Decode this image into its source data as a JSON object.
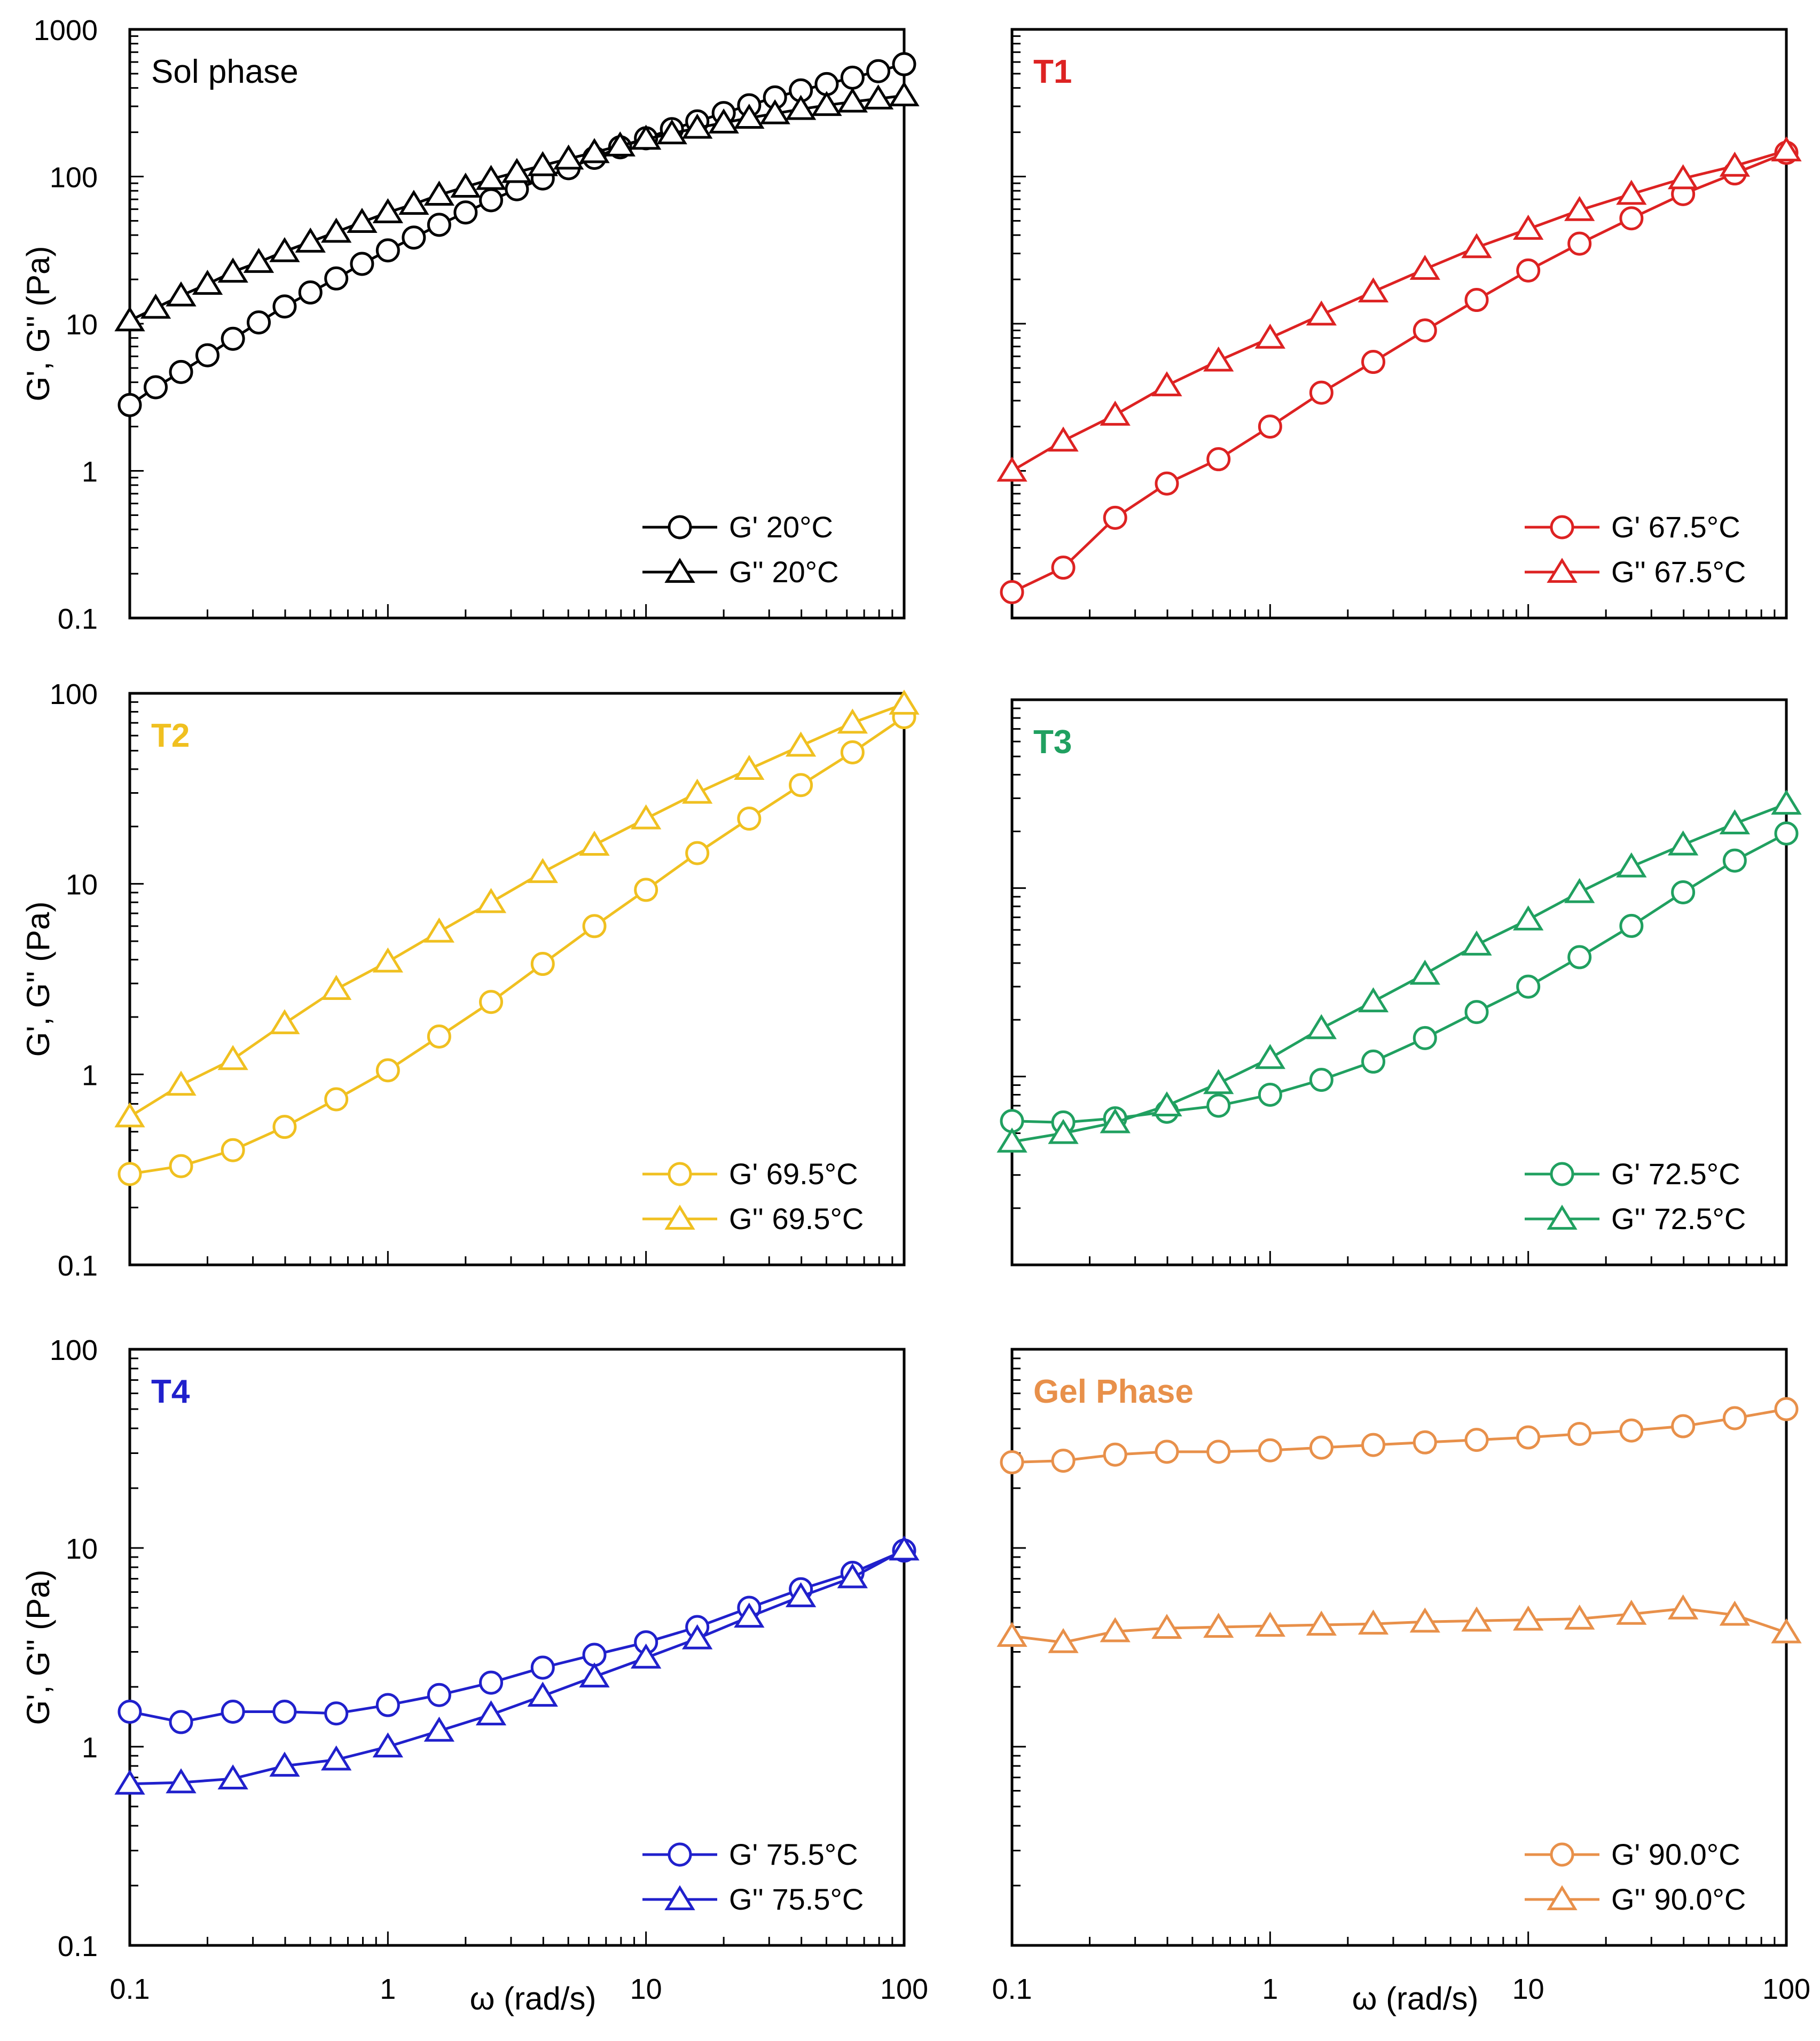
{
  "figure": {
    "y_axis_label": "G', G'' (Pa)",
    "x_axis_label": "ω (rad/s)"
  },
  "chart_data": [
    {
      "type": "line",
      "title": "Sol phase",
      "title_bold": false,
      "color": "#000000",
      "xscale": "log",
      "yscale": "log",
      "xlim": [
        0.1,
        100
      ],
      "ylim": [
        0.1,
        1000
      ],
      "x_ticks": [
        "0.1",
        "1",
        "10",
        "100"
      ],
      "y_ticks": [
        "0.1",
        "1",
        "10",
        "100",
        "1000"
      ],
      "show_x_tick_labels": false,
      "show_y_tick_labels": true,
      "show_x_label": false,
      "show_y_label": true,
      "x": [
        0.1,
        0.126,
        0.158,
        0.2,
        0.251,
        0.316,
        0.398,
        0.501,
        0.631,
        0.794,
        1,
        1.26,
        1.58,
        2,
        2.51,
        3.16,
        3.98,
        5.01,
        6.31,
        7.94,
        10,
        12.6,
        15.8,
        20,
        25.1,
        31.6,
        39.8,
        50.1,
        63.1,
        79.4,
        100
      ],
      "series": [
        {
          "name": "G' 20°C",
          "marker": "circle",
          "values": [
            2.8,
            3.7,
            4.7,
            6.1,
            7.9,
            10.2,
            13.1,
            16.3,
            20.3,
            25.5,
            31.5,
            38.5,
            47,
            57,
            69,
            82,
            97,
            114,
            134,
            158,
            182,
            210,
            237,
            270,
            305,
            345,
            385,
            425,
            470,
            520,
            580
          ]
        },
        {
          "name": "G'' 20°C",
          "marker": "triangle",
          "values": [
            10.5,
            12.8,
            15.5,
            18.6,
            22.5,
            26.2,
            31,
            36,
            42,
            49,
            57,
            65,
            75,
            85,
            96,
            107,
            119,
            132,
            146,
            162,
            180,
            196,
            214,
            232,
            250,
            268,
            287,
            305,
            322,
            338,
            355
          ]
        }
      ]
    },
    {
      "type": "line",
      "title": "T1",
      "title_bold": true,
      "color": "#dd2222",
      "xscale": "log",
      "yscale": "log",
      "xlim": [
        0.1,
        100
      ],
      "ylim": [
        0.1,
        1000
      ],
      "x_ticks": [
        "0.1",
        "1",
        "10",
        "100"
      ],
      "y_ticks": [
        "0.1",
        "1",
        "10",
        "100",
        "1000"
      ],
      "show_x_tick_labels": false,
      "show_y_tick_labels": false,
      "show_x_label": false,
      "show_y_label": false,
      "x": [
        0.1,
        0.158,
        0.251,
        0.398,
        0.631,
        1,
        1.58,
        2.51,
        3.98,
        6.31,
        10,
        15.8,
        25.1,
        39.8,
        63.1,
        100
      ],
      "series": [
        {
          "name": "G' 67.5°C",
          "marker": "circle",
          "values": [
            0.15,
            0.22,
            0.48,
            0.82,
            1.2,
            2.0,
            3.4,
            5.5,
            9.0,
            14.5,
            23,
            35,
            52,
            76,
            105,
            145
          ]
        },
        {
          "name": "G'' 67.5°C",
          "marker": "triangle",
          "values": [
            1.0,
            1.6,
            2.4,
            3.8,
            5.6,
            8.0,
            11.5,
            16.5,
            23.5,
            33,
            44,
            59,
            76,
            97,
            118,
            150
          ]
        }
      ]
    },
    {
      "type": "line",
      "title": "T2",
      "title_bold": true,
      "color": "#f0c020",
      "xscale": "log",
      "yscale": "log",
      "xlim": [
        0.1,
        100
      ],
      "ylim": [
        0.1,
        100
      ],
      "x_ticks": [
        "0.1",
        "1",
        "10",
        "100"
      ],
      "y_ticks": [
        "0.1",
        "1",
        "10",
        "100"
      ],
      "show_x_tick_labels": false,
      "show_y_tick_labels": true,
      "show_x_label": false,
      "show_y_label": true,
      "x": [
        0.1,
        0.158,
        0.251,
        0.398,
        0.631,
        1,
        1.58,
        2.51,
        3.98,
        6.31,
        10,
        15.8,
        25.1,
        39.8,
        63.1,
        100
      ],
      "series": [
        {
          "name": "G' 69.5°C",
          "marker": "circle",
          "values": [
            0.3,
            0.33,
            0.4,
            0.53,
            0.74,
            1.05,
            1.58,
            2.4,
            3.8,
            6.0,
            9.3,
            14.5,
            22,
            33,
            49,
            75
          ]
        },
        {
          "name": "G'' 69.5°C",
          "marker": "triangle",
          "values": [
            0.6,
            0.88,
            1.2,
            1.85,
            2.8,
            3.9,
            5.6,
            8.0,
            11.5,
            16,
            22,
            30,
            40,
            53,
            70,
            88
          ]
        }
      ]
    },
    {
      "type": "line",
      "title": "T3",
      "title_bold": true,
      "color": "#20a060",
      "xscale": "log",
      "yscale": "log",
      "xlim": [
        0.1,
        100
      ],
      "ylim": [
        0.1,
        100
      ],
      "x_ticks": [
        "0.1",
        "1",
        "10",
        "100"
      ],
      "y_ticks": [
        "0.1",
        "1",
        "10",
        "100"
      ],
      "show_x_tick_labels": false,
      "show_y_tick_labels": false,
      "show_x_label": false,
      "show_y_label": false,
      "x": [
        0.1,
        0.158,
        0.251,
        0.398,
        0.631,
        1,
        1.58,
        2.51,
        3.98,
        6.31,
        10,
        15.8,
        25.1,
        39.8,
        63.1,
        100
      ],
      "series": [
        {
          "name": "G' 72.5°C",
          "marker": "circle",
          "values": [
            0.58,
            0.57,
            0.6,
            0.65,
            0.7,
            0.8,
            0.96,
            1.2,
            1.6,
            2.2,
            3.0,
            4.3,
            6.3,
            9.5,
            14,
            19.5
          ]
        },
        {
          "name": "G'' 72.5°C",
          "marker": "triangle",
          "values": [
            0.45,
            0.5,
            0.57,
            0.7,
            0.92,
            1.25,
            1.8,
            2.5,
            3.5,
            5.0,
            6.8,
            9.5,
            13,
            17,
            22,
            28
          ]
        }
      ]
    },
    {
      "type": "line",
      "title": "T4",
      "title_bold": true,
      "color": "#2020cc",
      "xscale": "log",
      "yscale": "log",
      "xlim": [
        0.1,
        100
      ],
      "ylim": [
        0.1,
        100
      ],
      "x_ticks": [
        "0.1",
        "1",
        "10",
        "100"
      ],
      "y_ticks": [
        "0.1",
        "1",
        "10",
        "100"
      ],
      "show_x_tick_labels": true,
      "show_y_tick_labels": true,
      "show_x_label": true,
      "show_y_label": true,
      "x": [
        0.1,
        0.158,
        0.251,
        0.398,
        0.631,
        1,
        1.58,
        2.51,
        3.98,
        6.31,
        10,
        15.8,
        25.1,
        39.8,
        63.1,
        100
      ],
      "series": [
        {
          "name": "G' 75.5°C",
          "marker": "circle",
          "values": [
            1.5,
            1.33,
            1.5,
            1.5,
            1.47,
            1.62,
            1.82,
            2.1,
            2.5,
            2.9,
            3.35,
            4.0,
            5.0,
            6.2,
            7.5,
            9.7
          ]
        },
        {
          "name": "G'' 75.5°C",
          "marker": "triangle",
          "values": [
            0.65,
            0.66,
            0.69,
            0.8,
            0.86,
            1.0,
            1.2,
            1.45,
            1.8,
            2.25,
            2.8,
            3.5,
            4.5,
            5.7,
            7.1,
            9.8
          ]
        }
      ]
    },
    {
      "type": "line",
      "title": "Gel Phase",
      "title_bold": true,
      "color": "#e8904a",
      "xscale": "log",
      "yscale": "log",
      "xlim": [
        0.1,
        100
      ],
      "ylim": [
        0.1,
        100
      ],
      "x_ticks": [
        "0.1",
        "1",
        "10",
        "100"
      ],
      "y_ticks": [
        "0.1",
        "1",
        "10",
        "100"
      ],
      "show_x_tick_labels": true,
      "show_y_tick_labels": false,
      "show_x_label": true,
      "show_y_label": false,
      "x": [
        0.1,
        0.158,
        0.251,
        0.398,
        0.631,
        1,
        1.58,
        2.51,
        3.98,
        6.31,
        10,
        15.8,
        25.1,
        39.8,
        63.1,
        100
      ],
      "series": [
        {
          "name": "G' 90.0°C",
          "marker": "circle",
          "values": [
            27,
            27.5,
            29.5,
            30.5,
            30.5,
            31,
            32,
            33,
            34,
            35,
            36,
            37.5,
            39,
            41,
            45,
            50
          ]
        },
        {
          "name": "G'' 90.0°C",
          "marker": "triangle",
          "values": [
            3.6,
            3.35,
            3.8,
            3.95,
            4.0,
            4.05,
            4.1,
            4.15,
            4.25,
            4.3,
            4.35,
            4.4,
            4.65,
            4.95,
            4.6,
            3.75
          ]
        }
      ]
    }
  ]
}
